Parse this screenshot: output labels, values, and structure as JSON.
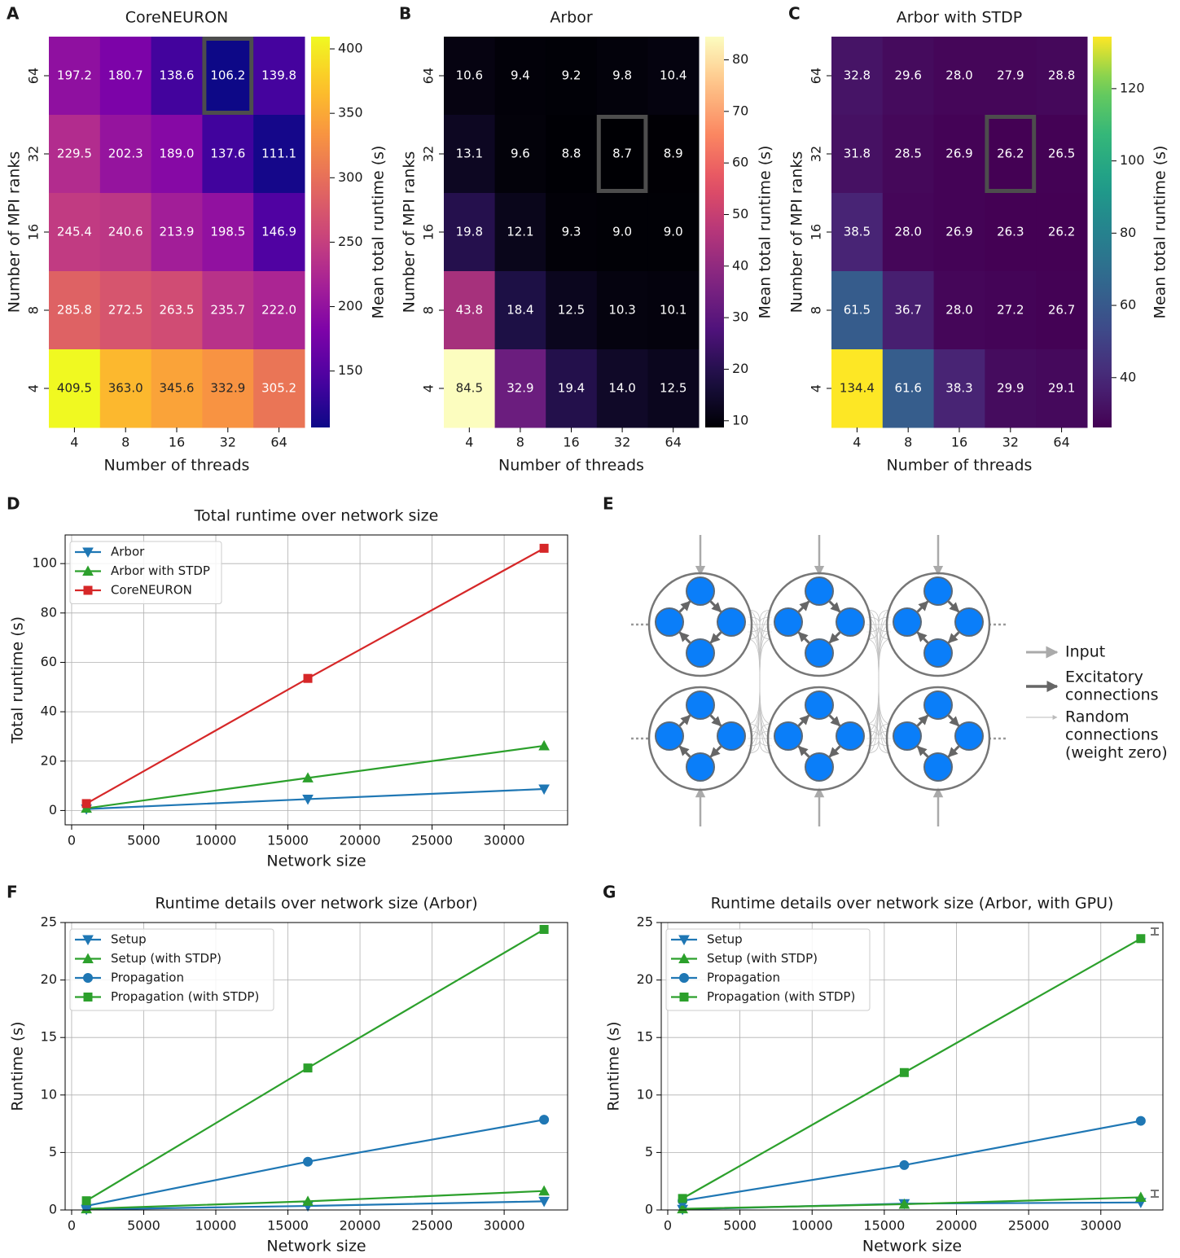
{
  "chart_data": [
    {
      "type": "heatmap",
      "panel_label": "A",
      "title": "CoreNEURON",
      "xlabel": "Number of threads",
      "ylabel": "Number of MPI ranks",
      "x_categories": [
        "4",
        "8",
        "16",
        "32",
        "64"
      ],
      "y_categories": [
        "64",
        "32",
        "16",
        "8",
        "4"
      ],
      "values": [
        [
          197.2,
          180.7,
          138.6,
          106.2,
          139.8
        ],
        [
          229.5,
          202.3,
          189.0,
          137.6,
          111.1
        ],
        [
          245.4,
          240.6,
          213.9,
          198.5,
          146.9
        ],
        [
          285.8,
          272.5,
          263.5,
          235.7,
          222.0
        ],
        [
          409.5,
          363.0,
          345.6,
          332.9,
          305.2
        ]
      ],
      "value_labels": [
        [
          "197.2",
          "180.7",
          "138.6",
          "106.2",
          "139.8"
        ],
        [
          "229.5",
          "202.3",
          "189.0",
          "137.6",
          "111.1"
        ],
        [
          "245.4",
          "240.6",
          "213.9",
          "198.5",
          "146.9"
        ],
        [
          "285.8",
          "272.5",
          "263.5",
          "235.7",
          "222.0"
        ],
        [
          "409.5",
          "363.0",
          "345.6",
          "332.9",
          "305.2"
        ]
      ],
      "colormap": "plasma",
      "clim": [
        106.2,
        409.5
      ],
      "cticks": [
        150,
        200,
        250,
        300,
        350,
        400
      ],
      "colorbar_label": "Mean total runtime (s)",
      "highlight": {
        "x": "32",
        "y": "64"
      }
    },
    {
      "type": "heatmap",
      "panel_label": "B",
      "title": "Arbor",
      "xlabel": "Number of threads",
      "ylabel": "Number of MPI ranks",
      "x_categories": [
        "4",
        "8",
        "16",
        "32",
        "64"
      ],
      "y_categories": [
        "64",
        "32",
        "16",
        "8",
        "4"
      ],
      "values": [
        [
          10.6,
          9.4,
          9.2,
          9.8,
          10.4
        ],
        [
          13.1,
          9.6,
          8.8,
          8.7,
          8.9
        ],
        [
          19.8,
          12.1,
          9.3,
          9.0,
          9.0
        ],
        [
          43.8,
          18.4,
          12.5,
          10.3,
          10.1
        ],
        [
          84.5,
          32.9,
          19.4,
          14.0,
          12.5
        ]
      ],
      "value_labels": [
        [
          "10.6",
          "9.4",
          "9.2",
          "9.8",
          "10.4"
        ],
        [
          "13.1",
          "9.6",
          "8.8",
          "8.7",
          "8.9"
        ],
        [
          "19.8",
          "12.1",
          "9.3",
          "9.0",
          "9.0"
        ],
        [
          "43.8",
          "18.4",
          "12.5",
          "10.3",
          "10.1"
        ],
        [
          "84.5",
          "32.9",
          "19.4",
          "14.0",
          "12.5"
        ]
      ],
      "colormap": "magma",
      "clim": [
        8.7,
        84.5
      ],
      "cticks": [
        10,
        20,
        30,
        40,
        50,
        60,
        70,
        80
      ],
      "colorbar_label": "Mean total runtime (s)",
      "highlight": {
        "x": "32",
        "y": "32"
      }
    },
    {
      "type": "heatmap",
      "panel_label": "C",
      "title": "Arbor with STDP",
      "xlabel": "Number of threads",
      "ylabel": "Number of MPI ranks",
      "x_categories": [
        "4",
        "8",
        "16",
        "32",
        "64"
      ],
      "y_categories": [
        "64",
        "32",
        "16",
        "8",
        "4"
      ],
      "values": [
        [
          32.8,
          29.6,
          28.0,
          27.9,
          28.8
        ],
        [
          31.8,
          28.5,
          26.9,
          26.2,
          26.5
        ],
        [
          38.5,
          28.0,
          26.9,
          26.3,
          26.2
        ],
        [
          61.5,
          36.7,
          28.0,
          27.2,
          26.7
        ],
        [
          134.4,
          61.6,
          38.3,
          29.9,
          29.1
        ]
      ],
      "value_labels": [
        [
          "32.8",
          "29.6",
          "28.0",
          "27.9",
          "28.8"
        ],
        [
          "31.8",
          "28.5",
          "26.9",
          "26.2",
          "26.5"
        ],
        [
          "38.5",
          "28.0",
          "26.9",
          "26.3",
          "26.2"
        ],
        [
          "61.5",
          "36.7",
          "28.0",
          "27.2",
          "26.7"
        ],
        [
          "134.4",
          "61.6",
          "38.3",
          "29.9",
          "29.1"
        ]
      ],
      "colormap": "viridis",
      "clim": [
        26.2,
        134.4
      ],
      "cticks": [
        40,
        60,
        80,
        100,
        120
      ],
      "colorbar_label": "Mean total runtime (s)",
      "highlight": {
        "x": "32",
        "y": "32"
      }
    },
    {
      "type": "line",
      "panel_label": "D",
      "title": "Total runtime over network size",
      "xlabel": "Network size",
      "ylabel": "Total runtime (s)",
      "x": [
        1024,
        16384,
        32768
      ],
      "series": [
        {
          "name": "Arbor",
          "color": "#1f77b4",
          "marker": "triangle-down",
          "values": [
            0.6,
            4.6,
            8.7
          ]
        },
        {
          "name": "Arbor with STDP",
          "color": "#2ca02c",
          "marker": "triangle-up",
          "values": [
            0.9,
            13.2,
            26.2
          ]
        },
        {
          "name": "CoreNEURON",
          "color": "#d62728",
          "marker": "square",
          "values": [
            2.8,
            53.5,
            106.2
          ]
        }
      ],
      "xlim": [
        -450,
        34400
      ],
      "ylim": [
        -5.8,
        111.6
      ],
      "xticks": [
        0,
        5000,
        10000,
        15000,
        20000,
        25000,
        30000
      ],
      "yticks": [
        0,
        20,
        40,
        60,
        80,
        100
      ],
      "grid": true,
      "legend": "upper left"
    },
    {
      "type": "line",
      "panel_label": "F",
      "title": "Runtime details over network size (Arbor)",
      "xlabel": "Network size",
      "ylabel": "Runtime (s)",
      "x": [
        1024,
        16384,
        32768
      ],
      "series": [
        {
          "name": "Setup",
          "color": "#1f77b4",
          "marker": "triangle-down",
          "values": [
            0.05,
            0.35,
            0.75
          ]
        },
        {
          "name": "Setup (with STDP)",
          "color": "#2ca02c",
          "marker": "triangle-up",
          "values": [
            0.1,
            0.75,
            1.65
          ]
        },
        {
          "name": "Propagation",
          "color": "#1f77b4",
          "marker": "circle",
          "values": [
            0.35,
            4.2,
            7.85
          ]
        },
        {
          "name": "Propagation (with STDP)",
          "color": "#2ca02c",
          "marker": "square",
          "values": [
            0.8,
            12.35,
            24.4
          ]
        }
      ],
      "xlim": [
        -450,
        34400
      ],
      "ylim": [
        0,
        25
      ],
      "xticks": [
        0,
        5000,
        10000,
        15000,
        20000,
        25000,
        30000
      ],
      "yticks": [
        0,
        5,
        10,
        15,
        20,
        25
      ],
      "grid": true,
      "legend": "upper left"
    },
    {
      "type": "line",
      "panel_label": "G",
      "title": "Runtime details over network size (Arbor, with GPU)",
      "xlabel": "Network size",
      "ylabel": "Runtime (s)",
      "x": [
        1024,
        16384,
        32768
      ],
      "series": [
        {
          "name": "Setup",
          "color": "#1f77b4",
          "marker": "triangle-down",
          "values": [
            0.05,
            0.55,
            0.65
          ]
        },
        {
          "name": "Setup (with STDP)",
          "color": "#2ca02c",
          "marker": "triangle-up",
          "values": [
            0.1,
            0.5,
            1.1
          ]
        },
        {
          "name": "Propagation",
          "color": "#1f77b4",
          "marker": "circle",
          "values": [
            0.8,
            3.9,
            7.75
          ]
        },
        {
          "name": "Propagation (with STDP)",
          "color": "#2ca02c",
          "marker": "square",
          "values": [
            1.0,
            11.95,
            23.6
          ]
        }
      ],
      "xlim": [
        -450,
        34300
      ],
      "ylim": [
        0,
        25
      ],
      "xticks": [
        0,
        5000,
        10000,
        15000,
        20000,
        25000,
        30000
      ],
      "yticks": [
        0,
        5,
        10,
        15,
        20,
        25
      ],
      "grid": true,
      "legend": "upper left"
    }
  ],
  "diagram": {
    "panel_label": "E",
    "legend": [
      [
        "Input"
      ],
      [
        "Excitatory",
        "connections"
      ],
      [
        "Random",
        "connections",
        "(weight zero)"
      ]
    ]
  }
}
